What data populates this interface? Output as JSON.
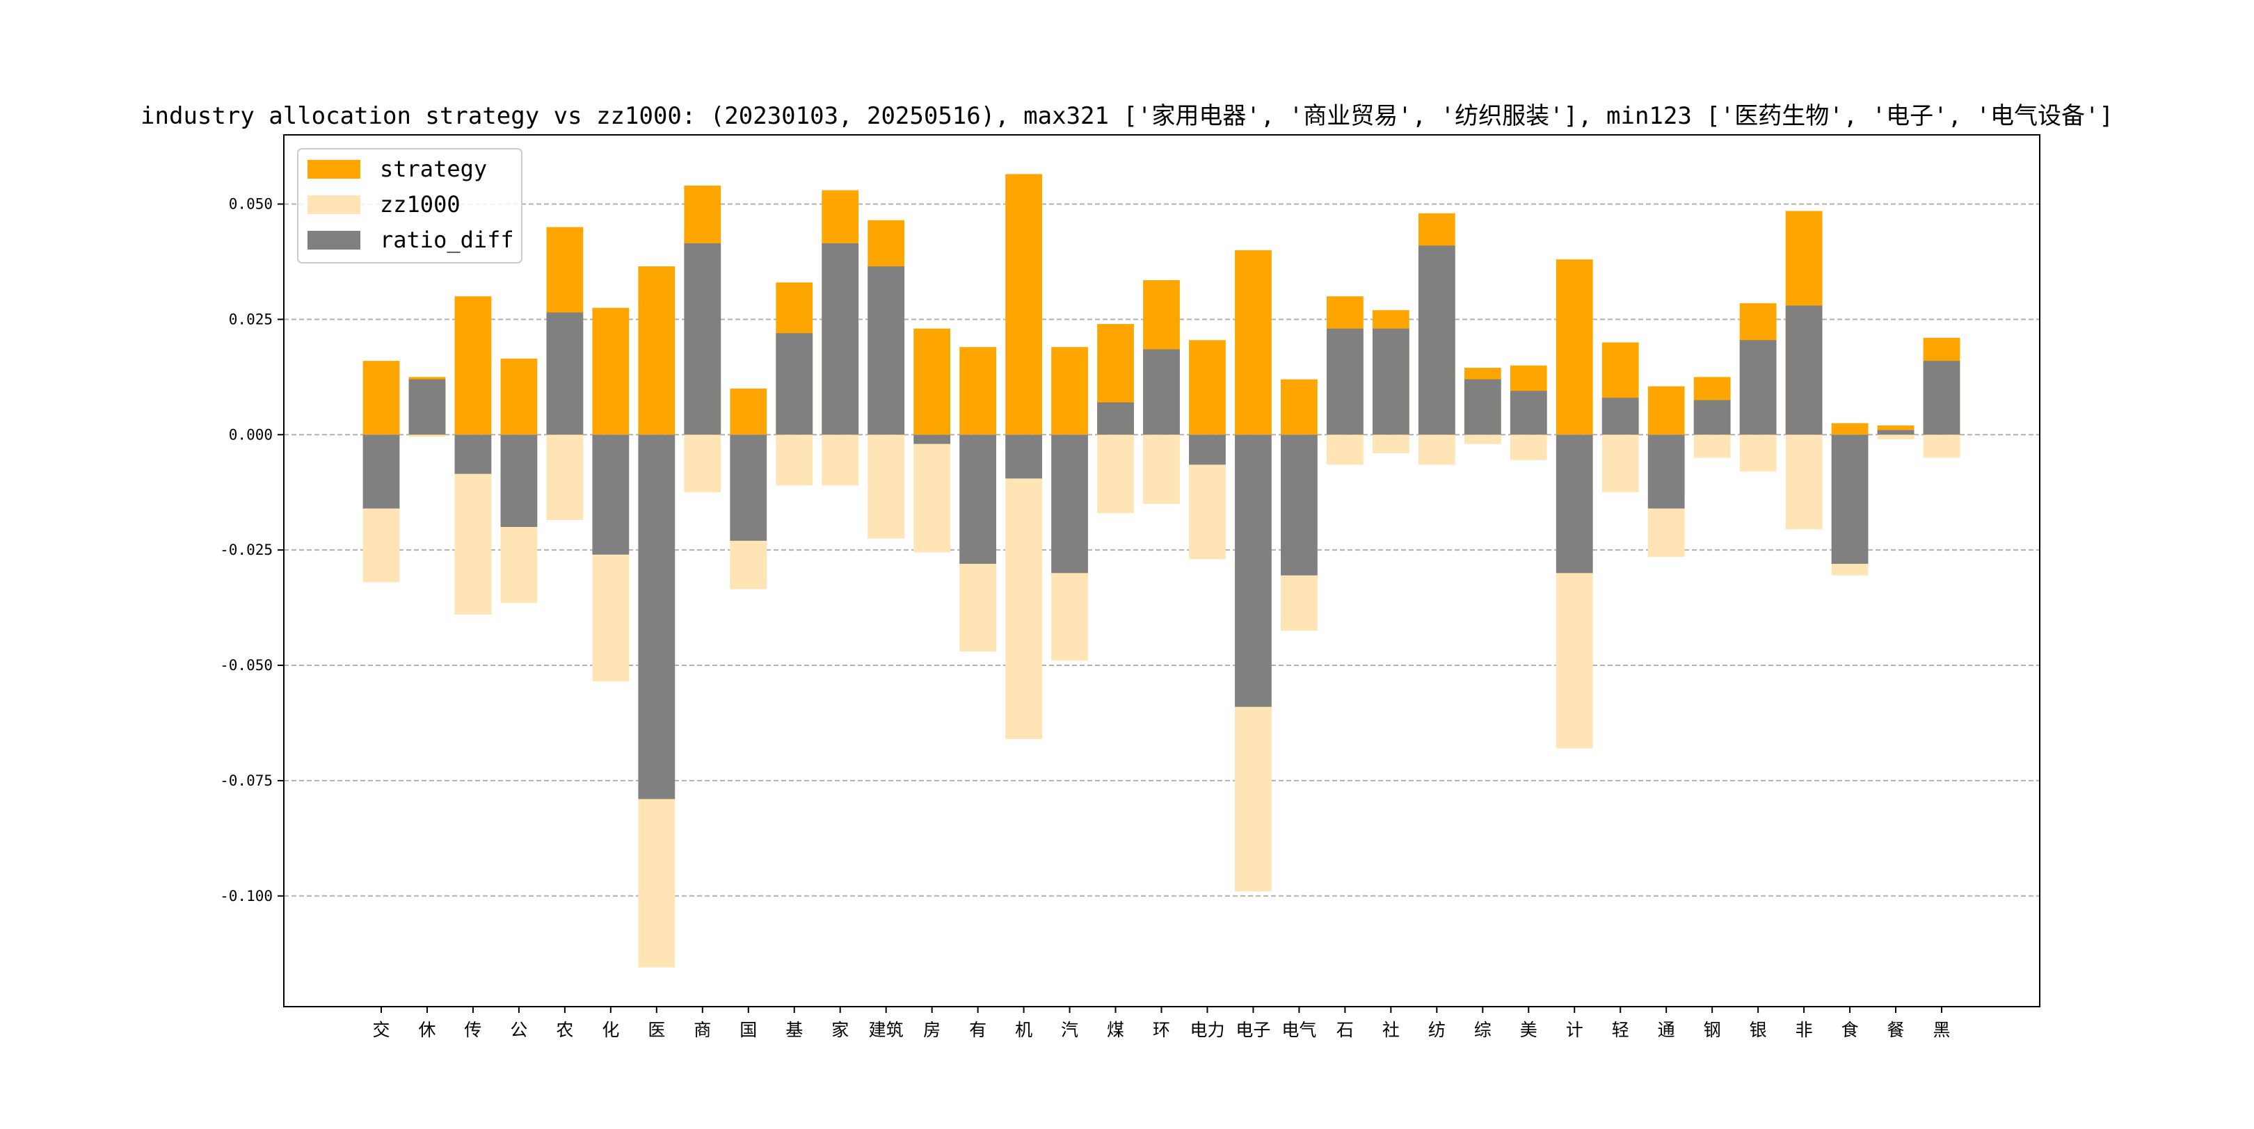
{
  "chart_data": {
    "type": "bar",
    "title": "industry allocation strategy vs zz1000: (20230103, 20250516), max321 ['家用电器', '商业贸易', '纺织服装'], min123 ['医药生物', '电子', '电气设备']",
    "xlabel": "",
    "ylabel": "",
    "ylim": [
      -0.124,
      0.065
    ],
    "yticks": [
      0.05,
      0.025,
      0.0,
      -0.025,
      -0.05,
      -0.075,
      -0.1
    ],
    "ytick_labels": [
      "0.050",
      "0.025",
      "0.000",
      "-0.025",
      "-0.050",
      "-0.075",
      "-0.100"
    ],
    "grid": true,
    "legend_position": "top-left",
    "categories": [
      "交",
      "休",
      "传",
      "公",
      "农",
      "化",
      "医",
      "商",
      "国",
      "基",
      "家",
      "建筑",
      "房",
      "有",
      "机",
      "汽",
      "煤",
      "环",
      "电力",
      "电子",
      "电气",
      "石",
      "社",
      "纺",
      "综",
      "美",
      "计",
      "轻",
      "通",
      "钢",
      "银",
      "非",
      "食",
      "餐",
      "黑"
    ],
    "series": [
      {
        "name": "strategy",
        "color": "#FFA500",
        "values": [
          0.016,
          0.0125,
          0.03,
          0.0165,
          0.045,
          0.0275,
          0.0365,
          0.054,
          0.01,
          0.033,
          0.053,
          0.0465,
          0.023,
          0.019,
          0.0565,
          0.019,
          0.024,
          0.0335,
          0.0205,
          0.04,
          0.012,
          0.03,
          0.027,
          0.048,
          0.0145,
          0.015,
          0.038,
          0.02,
          0.0105,
          0.0125,
          0.0285,
          0.0485,
          0.0025,
          0.002,
          0.021
        ]
      },
      {
        "name": "zz1000",
        "color": "#FFE4B5",
        "values": [
          -0.032,
          -0.0005,
          -0.039,
          -0.0365,
          -0.0185,
          -0.0535,
          -0.1155,
          -0.0125,
          -0.0335,
          -0.011,
          -0.011,
          -0.0225,
          -0.0255,
          -0.047,
          -0.066,
          -0.049,
          -0.017,
          -0.015,
          -0.027,
          -0.099,
          -0.0425,
          -0.0065,
          -0.004,
          -0.0065,
          -0.002,
          -0.0055,
          -0.068,
          -0.0125,
          -0.0265,
          -0.005,
          -0.008,
          -0.0205,
          -0.0305,
          -0.001,
          -0.005
        ]
      },
      {
        "name": "ratio_diff",
        "color": "#808080",
        "values": [
          -0.016,
          0.012,
          -0.0085,
          -0.02,
          0.0265,
          -0.026,
          -0.079,
          0.0415,
          -0.023,
          0.022,
          0.0415,
          0.0365,
          -0.002,
          -0.028,
          -0.0095,
          -0.03,
          0.007,
          0.0185,
          -0.0065,
          -0.059,
          -0.0305,
          0.023,
          0.023,
          0.041,
          0.012,
          0.0095,
          -0.03,
          0.008,
          -0.016,
          0.0075,
          0.0205,
          0.028,
          -0.028,
          0.001,
          0.016
        ]
      }
    ]
  }
}
